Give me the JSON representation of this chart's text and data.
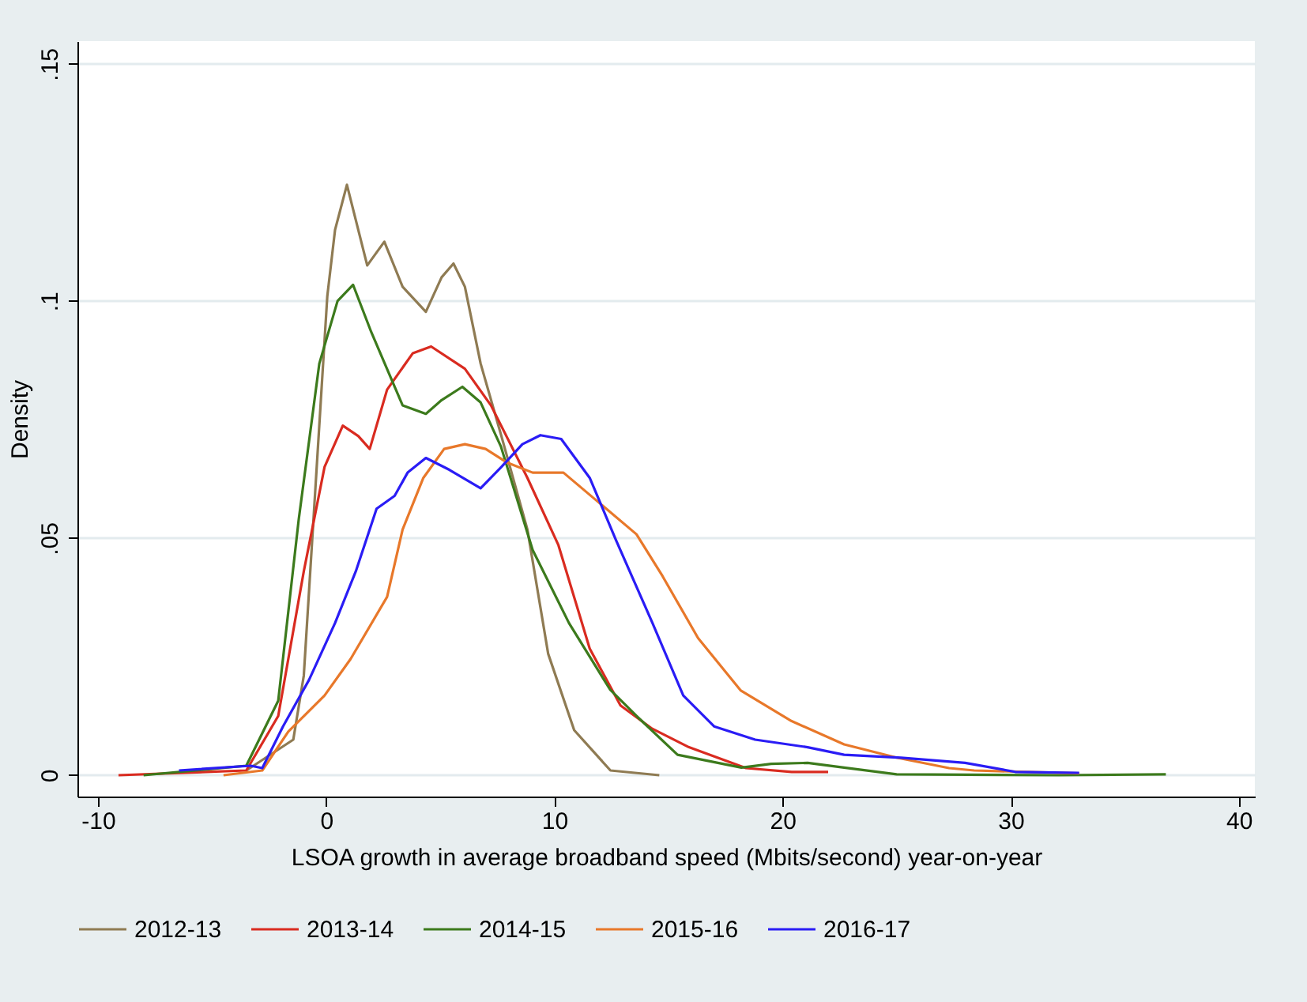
{
  "chart_data": {
    "type": "line",
    "xlabel": "LSOA growth in average broadband speed (Mbits/second) year-on-year",
    "ylabel": "Density",
    "xlim": [
      -10.9,
      40.7
    ],
    "ylim": [
      -0.0045,
      0.1548
    ],
    "xticks": [
      -10,
      0,
      10,
      20,
      30,
      40
    ],
    "yticks": [
      {
        "value": 0,
        "label": "0"
      },
      {
        "value": 0.05,
        "label": ".05"
      },
      {
        "value": 0.1,
        "label": ".1"
      },
      {
        "value": 0.15,
        "label": ".15"
      }
    ],
    "grid": "y",
    "legend": "bottom",
    "series": [
      {
        "name": "2012-13",
        "color": "#8f7b53",
        "x": [
          -3.5,
          -1.44,
          -0.98,
          0.05,
          0.39,
          0.91,
          1.8,
          2.55,
          3.35,
          4.37,
          5.06,
          5.58,
          6.08,
          6.77,
          7.68,
          8.82,
          9.73,
          10.87,
          12.46,
          14.6
        ],
        "values": [
          0.001,
          0.0075,
          0.021,
          0.101,
          0.115,
          0.1245,
          0.1075,
          0.1125,
          0.103,
          0.0977,
          0.105,
          0.1079,
          0.103,
          0.0868,
          0.0715,
          0.0518,
          0.0256,
          0.0095,
          0.001,
          0.0
        ]
      },
      {
        "name": "2013-14",
        "color": "#d92b20",
        "x": [
          -9.1,
          -3.5,
          -2.1,
          -0.98,
          -0.07,
          0.73,
          1.41,
          1.91,
          2.67,
          3.8,
          4.6,
          6.08,
          7.22,
          8.82,
          10.18,
          11.55,
          12.9,
          14.29,
          15.9,
          18.4,
          20.4,
          22.0
        ],
        "values": [
          0.0,
          0.001,
          0.0125,
          0.043,
          0.065,
          0.0737,
          0.0715,
          0.0688,
          0.0813,
          0.089,
          0.0904,
          0.0857,
          0.078,
          0.0627,
          0.0485,
          0.0267,
          0.0147,
          0.0098,
          0.0059,
          0.0015,
          0.0007,
          0.0007
        ]
      },
      {
        "name": "2014-15",
        "color": "#3c7a1c",
        "x": [
          -8.0,
          -3.5,
          -2.1,
          -1.2,
          -0.3,
          0.5,
          1.18,
          1.98,
          3.35,
          4.37,
          5.06,
          5.97,
          6.77,
          7.66,
          9.05,
          10.64,
          12.45,
          13.6,
          15.4,
          18.2,
          19.5,
          21.1,
          22.7,
          25.0,
          32.1,
          36.8
        ],
        "values": [
          0.0,
          0.002,
          0.0157,
          0.054,
          0.0868,
          0.1,
          0.1034,
          0.0934,
          0.078,
          0.0762,
          0.0791,
          0.0819,
          0.0786,
          0.0693,
          0.0475,
          0.0321,
          0.018,
          0.0125,
          0.0043,
          0.0016,
          0.0024,
          0.0026,
          0.0016,
          0.0002,
          0.0,
          0.0002
        ]
      },
      {
        "name": "2015-16",
        "color": "#e8782a",
        "x": [
          -4.5,
          -2.8,
          -1.66,
          -0.07,
          1.07,
          2.67,
          3.35,
          4.26,
          5.17,
          6.08,
          6.99,
          7.9,
          9.05,
          10.4,
          12.0,
          13.6,
          14.74,
          16.3,
          18.16,
          20.4,
          22.7,
          25.0,
          27.3,
          28.4,
          33.0
        ],
        "values": [
          0.0,
          0.001,
          0.0092,
          0.0168,
          0.0245,
          0.0376,
          0.0518,
          0.0627,
          0.0688,
          0.0698,
          0.0688,
          0.066,
          0.0638,
          0.0638,
          0.0573,
          0.0508,
          0.042,
          0.0289,
          0.0179,
          0.0114,
          0.0065,
          0.0037,
          0.0015,
          0.001,
          0.0004
        ]
      },
      {
        "name": "2016-17",
        "color": "#2a1cf5",
        "x": [
          -6.45,
          -3.3,
          -2.8,
          -1.89,
          -0.75,
          0.39,
          1.3,
          2.21,
          3.0,
          3.57,
          4.37,
          5.4,
          6.77,
          7.68,
          8.6,
          9.39,
          10.3,
          11.55,
          12.7,
          14.3,
          15.65,
          17.0,
          18.8,
          21.1,
          22.7,
          25.2,
          28.0,
          30.2,
          33.0
        ],
        "values": [
          0.001,
          0.002,
          0.0015,
          0.0103,
          0.0201,
          0.0321,
          0.043,
          0.0562,
          0.0589,
          0.0638,
          0.0669,
          0.0644,
          0.0605,
          0.065,
          0.0698,
          0.0717,
          0.0709,
          0.0627,
          0.0496,
          0.0321,
          0.0168,
          0.0103,
          0.0075,
          0.0059,
          0.0043,
          0.0037,
          0.0026,
          0.0007,
          0.0005
        ]
      }
    ]
  }
}
